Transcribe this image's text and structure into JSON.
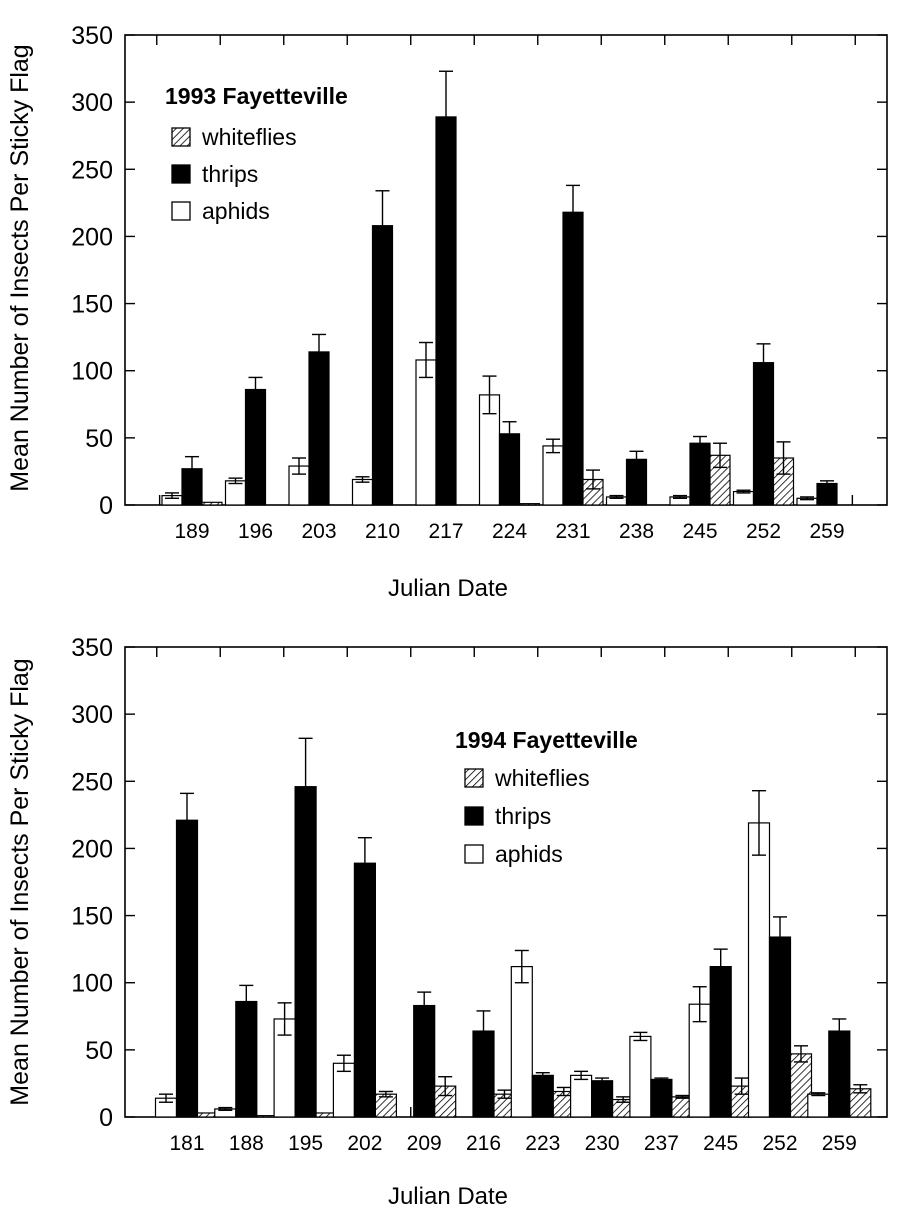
{
  "chart_data": [
    {
      "type": "bar",
      "title": "1993 Fayetteville",
      "xlabel": "Julian Date",
      "ylabel": "Mean Number of Insects Per Sticky Flag",
      "ylim": [
        0,
        350
      ],
      "yticks": [
        0,
        50,
        100,
        150,
        200,
        250,
        300,
        350
      ],
      "categories": [
        "189",
        "196",
        "203",
        "210",
        "217",
        "224",
        "231",
        "238",
        "245",
        "252",
        "259"
      ],
      "legend_position": "top-left",
      "series": [
        {
          "name": "whiteflies",
          "fill": "hatch",
          "values": [
            2,
            0,
            0,
            0,
            0,
            1,
            19,
            0,
            37,
            35,
            0
          ],
          "errors": [
            0,
            0,
            0,
            0,
            0,
            0,
            7,
            0,
            9,
            12,
            0
          ]
        },
        {
          "name": "thrips",
          "fill": "#000000",
          "values": [
            27,
            86,
            114,
            208,
            289,
            53,
            218,
            34,
            46,
            106,
            16
          ],
          "errors": [
            9,
            9,
            13,
            26,
            34,
            9,
            20,
            6,
            5,
            14,
            2
          ]
        },
        {
          "name": "aphids",
          "fill": "#ffffff",
          "values": [
            7,
            18,
            29,
            19,
            108,
            82,
            44,
            6,
            6,
            10,
            5
          ],
          "errors": [
            2,
            2,
            6,
            2,
            13,
            14,
            5,
            1,
            1,
            1,
            1
          ]
        }
      ]
    },
    {
      "type": "bar",
      "title": "1994 Fayetteville",
      "xlabel": "Julian Date",
      "ylabel": "Mean Number of Insects Per Sticky Flag",
      "ylim": [
        0,
        350
      ],
      "yticks": [
        0,
        50,
        100,
        150,
        200,
        250,
        300,
        350
      ],
      "categories": [
        "181",
        "188",
        "195",
        "202",
        "209",
        "216",
        "223",
        "230",
        "237",
        "245",
        "252",
        "259"
      ],
      "legend_position": "top-right",
      "series": [
        {
          "name": "whiteflies",
          "fill": "hatch",
          "values": [
            3,
            1,
            3,
            17,
            23,
            17,
            19,
            13,
            15,
            23,
            47,
            21
          ],
          "errors": [
            0,
            0,
            0,
            2,
            7,
            3,
            3,
            2,
            1,
            6,
            6,
            3
          ]
        },
        {
          "name": "thrips",
          "fill": "#000000",
          "values": [
            221,
            86,
            246,
            189,
            83,
            64,
            31,
            27,
            28,
            112,
            134,
            64
          ],
          "errors": [
            20,
            12,
            36,
            19,
            10,
            15,
            2,
            2,
            1,
            13,
            15,
            9
          ]
        },
        {
          "name": "aphids",
          "fill": "#ffffff",
          "values": [
            14,
            6,
            73,
            40,
            0,
            0,
            112,
            31,
            60,
            84,
            219,
            17
          ],
          "errors": [
            3,
            1,
            12,
            6,
            0,
            0,
            12,
            3,
            3,
            13,
            24,
            1
          ]
        }
      ]
    }
  ]
}
